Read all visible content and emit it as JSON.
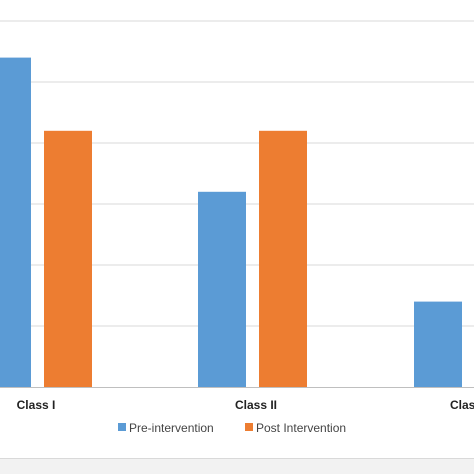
{
  "chart_data": {
    "type": "bar",
    "categories": [
      "Class I",
      "Class II",
      "Class III"
    ],
    "category_labels_visible": [
      "Class I",
      "Class II",
      "Clas"
    ],
    "series": [
      {
        "name": "Pre-intervention",
        "color": "#5b9bd5",
        "values": [
          5.4,
          3.2,
          1.4
        ]
      },
      {
        "name": "Post Intervention",
        "color": "#ed7d31",
        "values": [
          4.2,
          4.2,
          null
        ]
      }
    ],
    "ylim": [
      0,
      6
    ],
    "grid": true,
    "legend_position": "bottom"
  }
}
